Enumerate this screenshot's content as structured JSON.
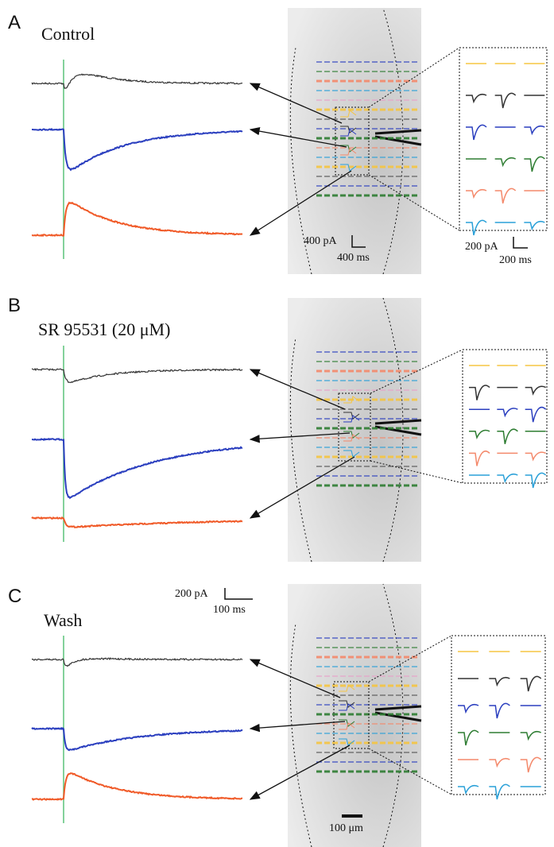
{
  "panels": [
    {
      "letter": "A",
      "condition": "Control",
      "scale_bars": [
        {
          "amplitude": "400 pA",
          "time": "400 ms"
        },
        {
          "amplitude": "200 pA",
          "time": "200 ms"
        }
      ]
    },
    {
      "letter": "B",
      "condition": "SR 95531 (20 μM)"
    },
    {
      "letter": "C",
      "condition": "Wash",
      "scale_bars": [
        {
          "amplitude": "200 pA",
          "time": "100 ms"
        }
      ],
      "distance_bar": "100 μm"
    }
  ]
}
